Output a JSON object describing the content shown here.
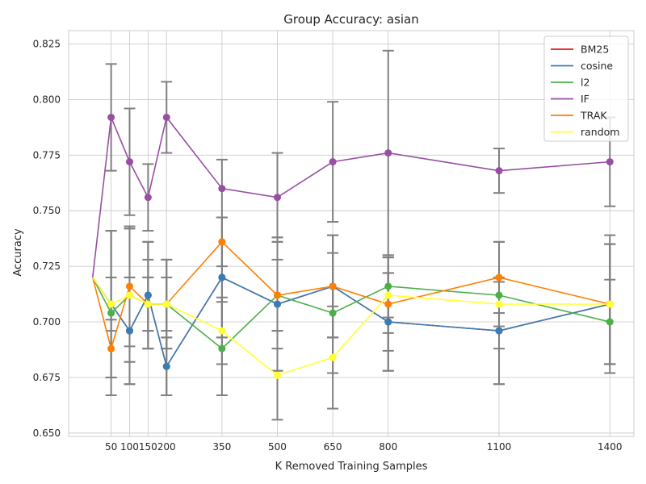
{
  "chart_data": {
    "type": "line",
    "title": "Group Accuracy: asian",
    "xlabel": "K Removed Training Samples",
    "ylabel": "Accuracy",
    "xlim": [
      -65,
      1465
    ],
    "ylim": [
      0.6485,
      0.831
    ],
    "x_ticks": [
      50,
      100,
      150,
      200,
      350,
      500,
      650,
      800,
      1100,
      1400
    ],
    "y_ticks": [
      0.65,
      0.675,
      0.7,
      0.725,
      0.75,
      0.775,
      0.8,
      0.825
    ],
    "y_tick_labels": [
      "0.650",
      "0.675",
      "0.700",
      "0.725",
      "0.750",
      "0.775",
      "0.800",
      "0.825"
    ],
    "grid": true,
    "legend_position": "top-right",
    "baseline_x": 0,
    "baseline_y": 0.72,
    "series": [
      {
        "name": "BM25",
        "color": "#e41a1c",
        "x": [
          50,
          100,
          150,
          200,
          350,
          500,
          650,
          800,
          1100,
          1400
        ],
        "y": [
          0.708,
          0.696,
          0.712,
          0.68,
          0.72,
          0.708,
          0.716,
          0.7,
          0.696,
          0.708
        ],
        "err": [
          0.033,
          0.024,
          0.024,
          0.013,
          0.027,
          0.03,
          0.023,
          0.022,
          0.024,
          0.027
        ]
      },
      {
        "name": "cosine",
        "color": "#377eb8",
        "x": [
          50,
          100,
          150,
          200,
          350,
          500,
          650,
          800,
          1100,
          1400
        ],
        "y": [
          0.708,
          0.696,
          0.712,
          0.68,
          0.72,
          0.708,
          0.716,
          0.7,
          0.696,
          0.708
        ],
        "err": [
          0.033,
          0.024,
          0.024,
          0.013,
          0.027,
          0.03,
          0.023,
          0.022,
          0.024,
          0.027
        ]
      },
      {
        "name": "l2",
        "color": "#4daf4a",
        "x": [
          50,
          100,
          150,
          200,
          350,
          500,
          650,
          800,
          1100,
          1400
        ],
        "y": [
          0.704,
          0.712,
          0.708,
          0.708,
          0.688,
          0.712,
          0.704,
          0.716,
          0.712,
          0.7
        ],
        "err": [
          0.037,
          0.03,
          0.02,
          0.02,
          0.021,
          0.024,
          0.027,
          0.014,
          0.024,
          0.019
        ]
      },
      {
        "name": "IF",
        "color": "#984ea3",
        "x": [
          50,
          100,
          150,
          200,
          350,
          500,
          650,
          800,
          1100,
          1400
        ],
        "y": [
          0.792,
          0.772,
          0.756,
          0.792,
          0.76,
          0.756,
          0.772,
          0.776,
          0.768,
          0.772
        ],
        "err": [
          0.024,
          0.024,
          0.015,
          0.016,
          0.013,
          0.02,
          0.027,
          0.046,
          0.01,
          0.02
        ]
      },
      {
        "name": "TRAK",
        "color": "#ff7f00",
        "x": [
          50,
          100,
          150,
          200,
          350,
          500,
          650,
          800,
          1100,
          1400
        ],
        "y": [
          0.688,
          0.716,
          0.708,
          0.708,
          0.736,
          0.712,
          0.716,
          0.708,
          0.72,
          0.708
        ],
        "err": [
          0.013,
          0.027,
          0.012,
          0.02,
          0.011,
          0.016,
          0.023,
          0.021,
          0.016,
          0.031
        ]
      },
      {
        "name": "random",
        "color": "#ffff33",
        "x": [
          50,
          100,
          150,
          200,
          350,
          500,
          650,
          800,
          1100,
          1400
        ],
        "y": [
          0.708,
          0.712,
          0.708,
          0.708,
          0.696,
          0.676,
          0.684,
          0.712,
          0.708,
          0.708
        ],
        "err": [
          0.012,
          0.03,
          0.012,
          0.012,
          0.015,
          0.02,
          0.023,
          0.017,
          0.01,
          0.027
        ]
      }
    ]
  }
}
